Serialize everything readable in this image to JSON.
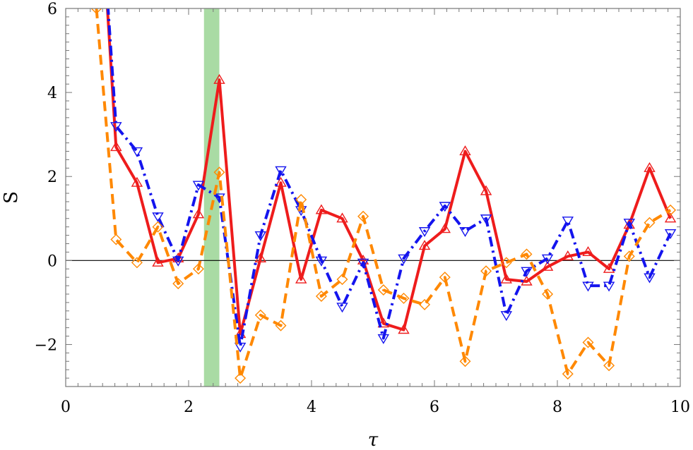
{
  "chart_data": {
    "type": "line",
    "xlabel": "τ",
    "ylabel": "S",
    "xlim": [
      0,
      10
    ],
    "ylim": [
      -3,
      6
    ],
    "xticks": [
      "0",
      "2",
      "4",
      "6",
      "8",
      "10"
    ],
    "yticks": [
      "−2",
      "0",
      "2",
      "4",
      "6"
    ],
    "highlight_band": {
      "x0": 2.25,
      "x1": 2.5,
      "color": "#a9dba4"
    },
    "zero_line": true,
    "series": [
      {
        "color": "#ee1c1c",
        "style": "solid",
        "marker": "triangle-up",
        "x": [
          0.55,
          0.82,
          1.16,
          1.5,
          1.83,
          2.16,
          2.5,
          2.84,
          3.17,
          3.5,
          3.83,
          4.16,
          4.5,
          4.84,
          5.17,
          5.5,
          5.84,
          6.17,
          6.5,
          6.84,
          7.17,
          7.5,
          7.84,
          8.17,
          8.5,
          8.84,
          9.17,
          9.5,
          9.84
        ],
        "y": [
          9.0,
          2.7,
          1.85,
          -0.05,
          0.05,
          1.1,
          4.3,
          -1.75,
          0.05,
          1.85,
          -0.45,
          1.2,
          1.0,
          0.0,
          -1.5,
          -1.65,
          0.35,
          0.75,
          2.6,
          1.65,
          -0.45,
          -0.5,
          -0.15,
          0.1,
          0.2,
          -0.2,
          0.85,
          2.2,
          1.0
        ]
      },
      {
        "color": "#1414ee",
        "style": "dashdot",
        "marker": "triangle-down",
        "x": [
          0.55,
          0.82,
          1.16,
          1.5,
          1.83,
          2.16,
          2.5,
          2.84,
          3.17,
          3.5,
          3.83,
          4.16,
          4.5,
          4.84,
          5.17,
          5.5,
          5.84,
          6.17,
          6.5,
          6.84,
          7.17,
          7.5,
          7.84,
          8.17,
          8.5,
          8.84,
          9.17,
          9.5,
          9.84
        ],
        "y": [
          9.0,
          3.2,
          2.6,
          1.05,
          0.0,
          1.8,
          1.5,
          -2.05,
          0.6,
          2.15,
          1.2,
          0.0,
          -1.1,
          -0.05,
          -1.85,
          0.05,
          0.7,
          1.3,
          0.7,
          1.0,
          -1.3,
          -0.25,
          0.05,
          0.95,
          -0.6,
          -0.6,
          0.9,
          -0.4,
          0.65
        ]
      },
      {
        "color": "#ff8800",
        "style": "dashed",
        "marker": "diamond",
        "x": [
          0.5,
          0.82,
          1.16,
          1.5,
          1.83,
          2.16,
          2.5,
          2.84,
          3.17,
          3.5,
          3.83,
          4.16,
          4.5,
          4.84,
          5.17,
          5.5,
          5.84,
          6.17,
          6.5,
          6.84,
          7.17,
          7.5,
          7.84,
          8.17,
          8.5,
          8.84,
          9.17,
          9.5,
          9.84
        ],
        "y": [
          6.0,
          0.5,
          -0.05,
          0.8,
          -0.55,
          -0.2,
          2.1,
          -2.8,
          -1.3,
          -1.55,
          1.45,
          -0.85,
          -0.45,
          1.05,
          -0.7,
          -0.9,
          -1.05,
          -0.4,
          -2.4,
          -0.25,
          -0.05,
          0.15,
          -0.8,
          -2.7,
          -1.95,
          -2.5,
          0.1,
          0.9,
          1.2
        ]
      }
    ]
  }
}
